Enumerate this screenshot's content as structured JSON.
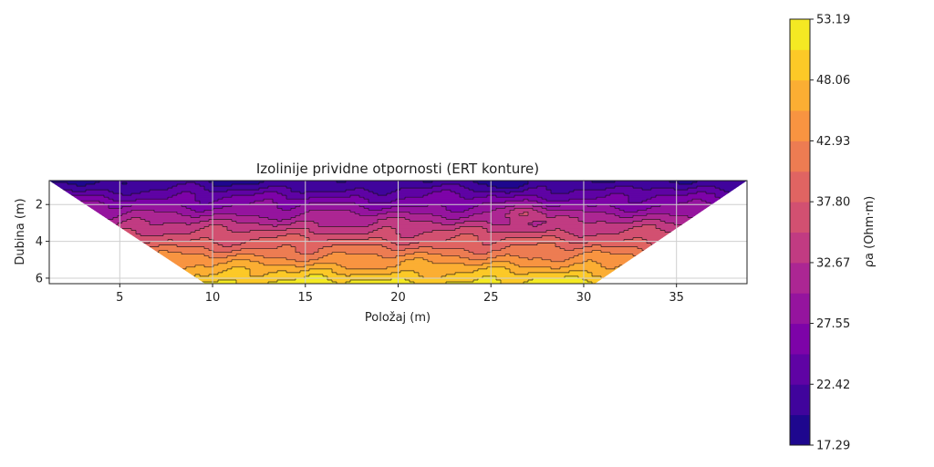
{
  "chart_data": [
    {
      "type": "heatmap",
      "subtype": "contour",
      "title": "Izolinije prividne otpornosti (ERT konture)",
      "xlabel": "Položaj (m)",
      "ylabel": "Dubina (m)",
      "xlim": [
        1.2,
        38.8
      ],
      "ylim": [
        6.3,
        0.7
      ],
      "x_ticks": [
        "5",
        "10",
        "15",
        "20",
        "25",
        "30",
        "35"
      ],
      "y_ticks": [
        "2",
        "4",
        "6"
      ],
      "grid": true,
      "pseudosection": {
        "top_depth": 0.7,
        "bottom_depth": 6.3,
        "top_x": [
          1.2,
          38.8
        ],
        "bottom_x": [
          9.6,
          30.6
        ]
      },
      "field": {
        "value_at_top": 20.5,
        "value_at_bottom": 51.5,
        "anomalies": [
          {
            "x": 27.0,
            "depth": 2.5,
            "delta": 5.5,
            "note": "local high resistivity"
          },
          {
            "x": 4.5,
            "depth": 0.9,
            "delta": -2.0
          },
          {
            "x": 10.5,
            "depth": 0.9,
            "delta": -2.0
          },
          {
            "x": 18.5,
            "depth": 1.0,
            "delta": -1.8
          },
          {
            "x": 26.0,
            "depth": 0.9,
            "delta": -2.2
          },
          {
            "x": 31.8,
            "depth": 0.9,
            "delta": -1.8
          }
        ]
      },
      "colorbar": {
        "label": "ρa (Ohm·m)",
        "min": 17.29,
        "max": 53.19,
        "tick_labels": [
          "17.29",
          "22.42",
          "27.55",
          "32.67",
          "37.80",
          "42.93",
          "48.06",
          "53.19"
        ],
        "levels": 14,
        "colormap": "plasma"
      }
    }
  ]
}
